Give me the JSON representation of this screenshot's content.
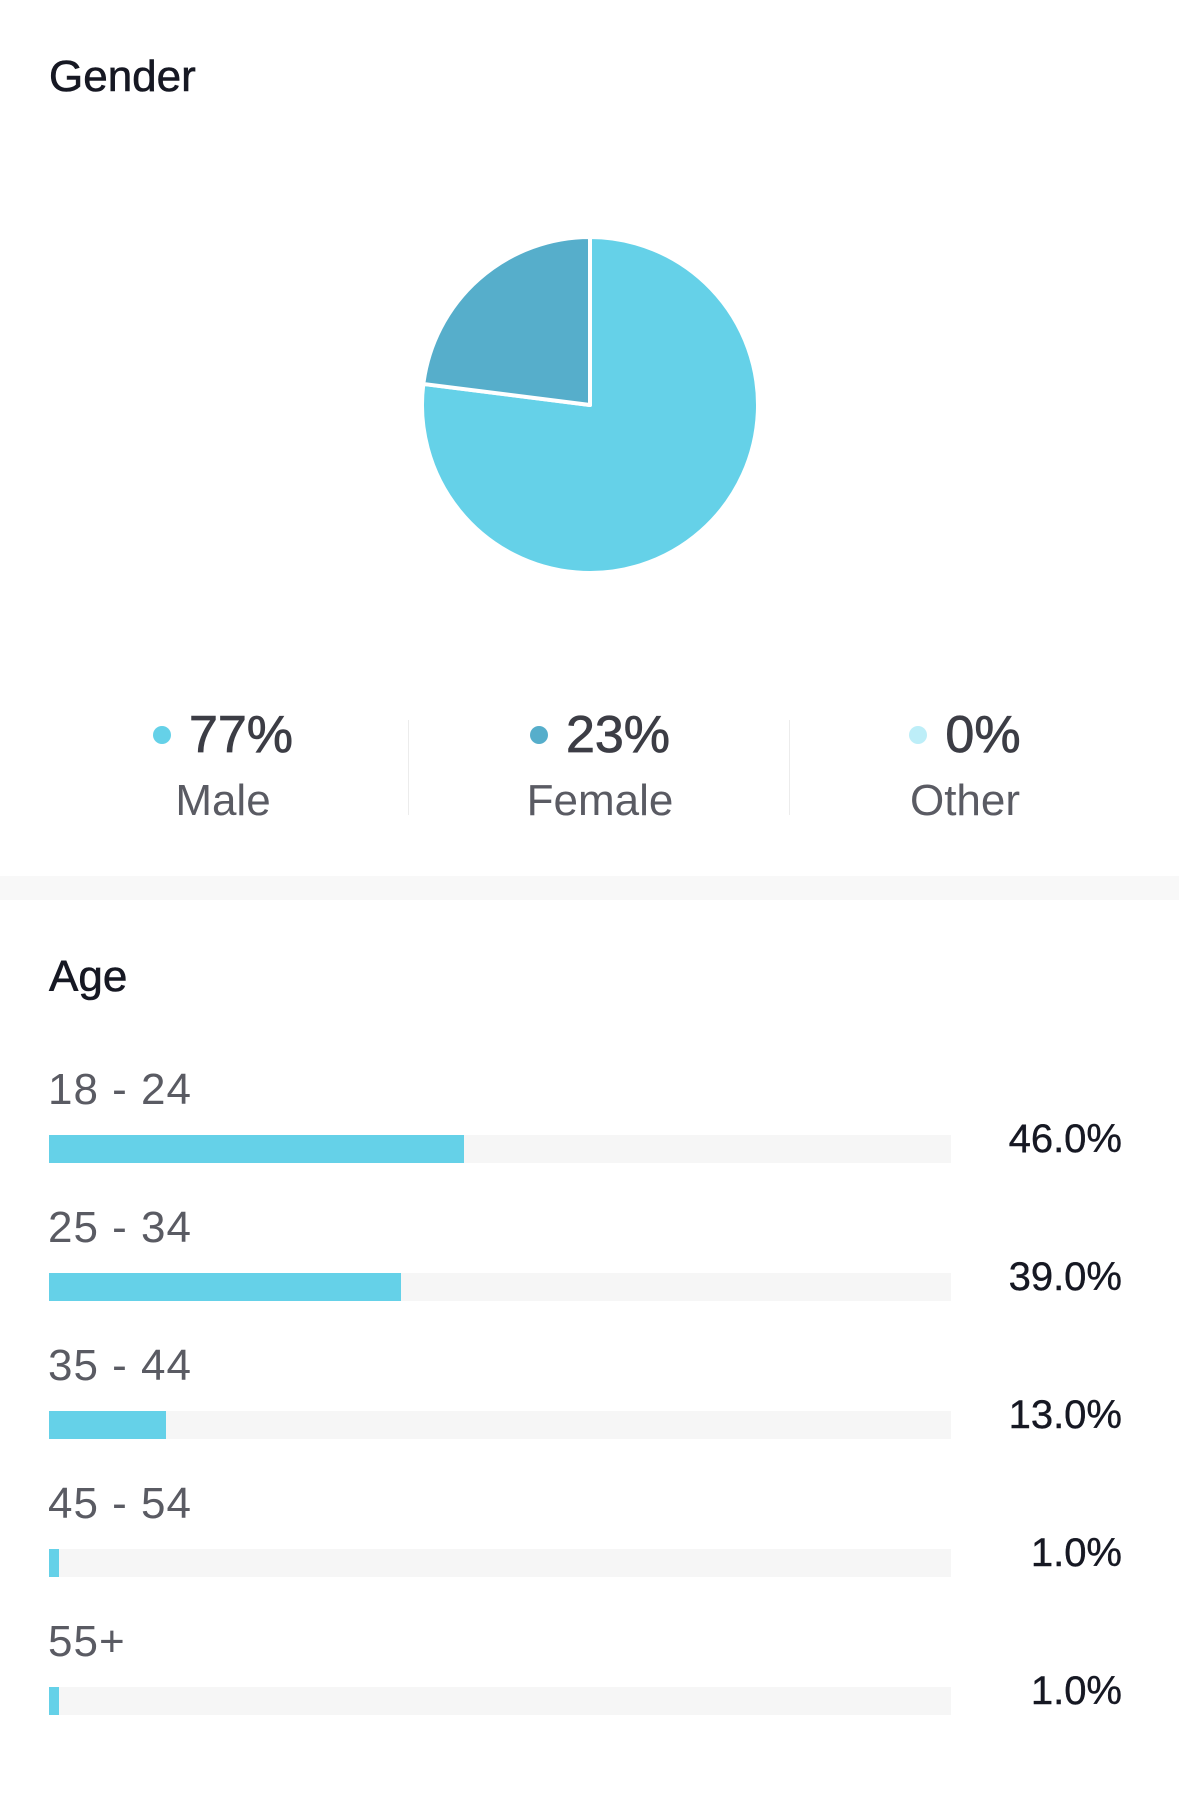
{
  "gender": {
    "title": "Gender",
    "items": [
      {
        "value": "77%",
        "label": "Male",
        "color": "#65d1e8"
      },
      {
        "value": "23%",
        "label": "Female",
        "color": "#56aecb"
      },
      {
        "value": "0%",
        "label": "Other",
        "color": "#bdeef8"
      }
    ]
  },
  "age": {
    "title": "Age",
    "rows": [
      {
        "label": "18 - 24",
        "pct_text": "46.0%"
      },
      {
        "label": "25 - 34",
        "pct_text": "39.0%"
      },
      {
        "label": "35 - 44",
        "pct_text": "13.0%"
      },
      {
        "label": "45 - 54",
        "pct_text": "1.0%"
      },
      {
        "label": "55+",
        "pct_text": "1.0%"
      }
    ],
    "bar_color": "#65d1e8",
    "track_color": "#f6f6f6"
  },
  "chart_data": [
    {
      "type": "pie",
      "title": "Gender",
      "categories": [
        "Male",
        "Female",
        "Other"
      ],
      "values": [
        77,
        23,
        0
      ],
      "colors": [
        "#65d1e8",
        "#56aecb",
        "#bdeef8"
      ],
      "legend": "bottom"
    },
    {
      "type": "bar",
      "orientation": "horizontal",
      "title": "Age",
      "categories": [
        "18 - 24",
        "25 - 34",
        "35 - 44",
        "45 - 54",
        "55+"
      ],
      "values": [
        46.0,
        39.0,
        13.0,
        1.0,
        1.0
      ],
      "xlim": [
        0,
        100
      ],
      "grid": false
    }
  ]
}
